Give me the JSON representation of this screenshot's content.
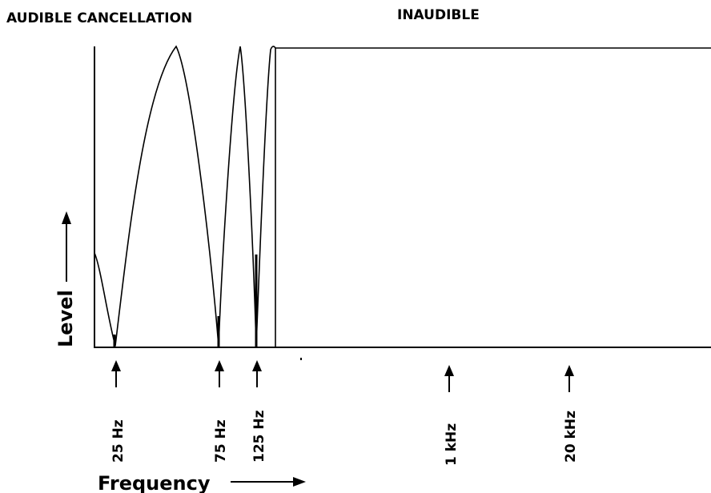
{
  "headings": {
    "left": "AUDIBLE CANCELLATION",
    "right": "INAUDIBLE"
  },
  "axes": {
    "y_label": "Level",
    "x_label": "Frequency"
  },
  "frequency_markers": [
    {
      "label": "25 Hz"
    },
    {
      "label": "75 Hz"
    },
    {
      "label": "125 Hz"
    },
    {
      "label": "1 kHz"
    },
    {
      "label": "20 kHz"
    }
  ],
  "colors": {
    "ink": "#000000",
    "background": "#ffffff"
  }
}
